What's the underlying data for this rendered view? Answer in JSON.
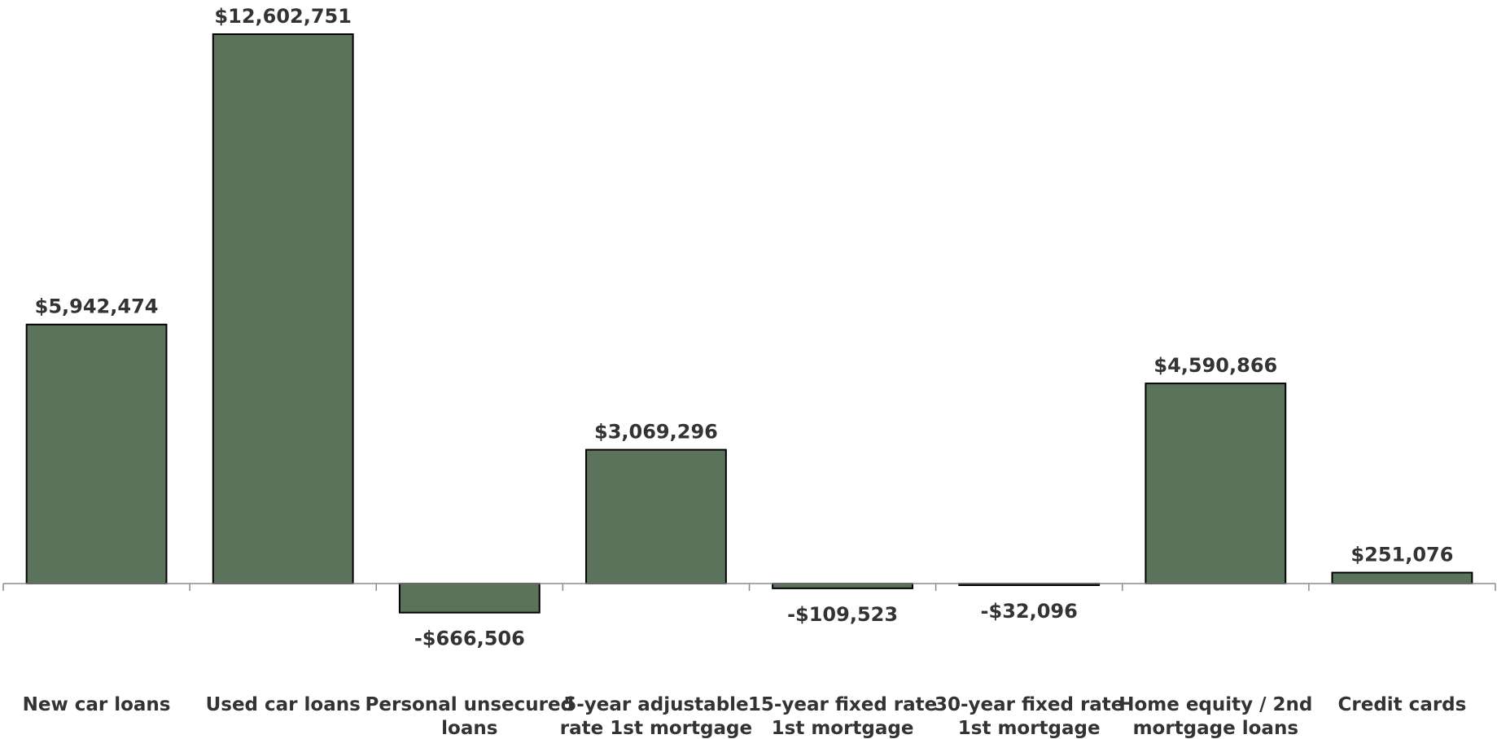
{
  "chart_data": {
    "type": "bar",
    "categories": [
      [
        "New car loans"
      ],
      [
        "Used car loans"
      ],
      [
        "Personal unsecured",
        "loans"
      ],
      [
        "5-year adjustable",
        "rate 1st mortgage"
      ],
      [
        "15-year fixed rate",
        "1st mortgage"
      ],
      [
        "30-year fixed rate",
        "1st mortgage"
      ],
      [
        "Home equity / 2nd",
        "mortgage loans"
      ],
      [
        "Credit cards"
      ]
    ],
    "series": [
      {
        "values": [
          5942474,
          12602751,
          -666506,
          3069296,
          -109523,
          -32096,
          4590866,
          251076
        ],
        "data_labels": [
          "$5,942,474",
          "$12,602,751",
          "-$666,506",
          "$3,069,296",
          "-$109,523",
          "-$32,096",
          "$4,590,866",
          "$251,076"
        ]
      }
    ],
    "title": "",
    "xlabel": "",
    "ylabel": "",
    "ylim": [
      -3000000,
      13300000
    ],
    "grid": false,
    "legend": "none",
    "colors": {
      "bar_fill": "#5a735a",
      "bar_stroke": "#000000",
      "axis": "#8c8c8c",
      "label_text": "#333333"
    }
  }
}
